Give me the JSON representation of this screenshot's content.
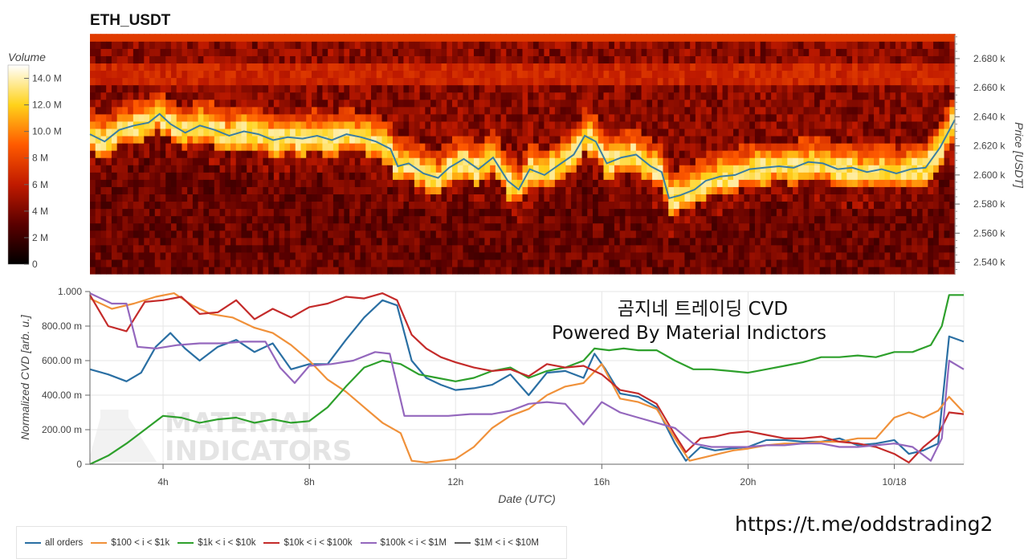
{
  "title": "ETH_USDT",
  "url_text": "https://t.me/oddstrading2",
  "overlay": {
    "line1": "곰지네 트레이딩 CVD",
    "line2": "Powered By Material Indictors"
  },
  "watermark": {
    "line1": "MATERIAL",
    "line2": "INDICATORS"
  },
  "colors": {
    "price_line": "#3b7ea1",
    "heatmap_low": "#000000",
    "heatmap_high": "#ffffff"
  },
  "chart_data": [
    {
      "type": "heatmap",
      "title": "ETH_USDT",
      "colorbar": {
        "label": "Volume",
        "ticks": [
          "0",
          "2 M",
          "4 M",
          "6 M",
          "8 M",
          "10.0 M",
          "12.0 M",
          "14.0 M"
        ],
        "range": [
          0,
          15000000
        ]
      },
      "ylabel": "Price [USDT]",
      "yticks": [
        "2.540 k",
        "2.560 k",
        "2.580 k",
        "2.600 k",
        "2.620 k",
        "2.640 k",
        "2.660 k",
        "2.680 k"
      ],
      "ylim": [
        2532,
        2696
      ],
      "time_range_hours": [
        2.2,
        21.8
      ],
      "price_series": {
        "t": [
          2.2,
          2.6,
          3.0,
          3.4,
          3.8,
          4.1,
          4.4,
          4.8,
          5.2,
          5.6,
          6.0,
          6.4,
          6.8,
          7.2,
          7.6,
          8.0,
          8.4,
          8.8,
          9.2,
          9.6,
          10.0,
          10.4,
          10.6,
          10.9,
          11.3,
          11.7,
          12.0,
          12.4,
          12.8,
          13.2,
          13.6,
          13.9,
          14.2,
          14.6,
          15.0,
          15.4,
          15.7,
          16.0,
          16.3,
          16.7,
          17.1,
          17.5,
          17.8,
          18.0,
          18.3,
          18.7,
          19.0,
          19.4,
          19.8,
          20.2,
          20.6,
          21.0,
          21.4,
          21.8,
          22.2,
          22.6,
          23.0,
          23.4,
          23.8,
          24.2,
          24.6,
          25.0,
          25.4,
          25.8
        ],
        "price": [
          2628,
          2623,
          2631,
          2634,
          2636,
          2642,
          2635,
          2629,
          2634,
          2631,
          2627,
          2630,
          2628,
          2624,
          2626,
          2625,
          2627,
          2624,
          2628,
          2626,
          2623,
          2618,
          2606,
          2608,
          2601,
          2598,
          2605,
          2611,
          2604,
          2612,
          2596,
          2590,
          2604,
          2600,
          2607,
          2614,
          2627,
          2623,
          2608,
          2612,
          2614,
          2606,
          2602,
          2584,
          2586,
          2590,
          2596,
          2599,
          2600,
          2604,
          2605,
          2606,
          2605,
          2609,
          2608,
          2604,
          2605,
          2602,
          2604,
          2601,
          2604,
          2605,
          2619,
          2638
        ]
      },
      "heat_bands": [
        {
          "price": 2600,
          "volume": 14000000,
          "t_start": 10.5,
          "t_end": 21.6
        },
        {
          "price": 2628,
          "volume": 13000000,
          "t_start": 2.2,
          "t_end": 10.6
        },
        {
          "price": 2640,
          "volume": 9000000,
          "t_start": 2.2,
          "t_end": 21.8
        },
        {
          "price": 2670,
          "volume": 8000000,
          "t_start": 2.2,
          "t_end": 21.8
        }
      ]
    },
    {
      "type": "line",
      "xlabel": "Date (UTC)",
      "ylabel": "Normalized CVD [arb. u.]",
      "xticks": [
        "4h",
        "8h",
        "12h",
        "16h",
        "20h",
        "10/18"
      ],
      "xtick_hours": [
        4,
        8,
        12,
        16,
        20,
        24
      ],
      "yticks": [
        "0",
        "200.00 m",
        "400.00 m",
        "600.00 m",
        "800.00 m",
        "1.000"
      ],
      "ylim": [
        0,
        1
      ],
      "xlim_hours": [
        2.0,
        25.9
      ],
      "series": [
        {
          "name": "all orders",
          "color": "#2a6fa3",
          "x": [
            2.0,
            2.5,
            3.0,
            3.4,
            3.8,
            4.2,
            4.6,
            5.0,
            5.5,
            6.0,
            6.5,
            7.0,
            7.5,
            8.0,
            8.5,
            9.0,
            9.5,
            10.0,
            10.4,
            10.8,
            11.2,
            11.6,
            12.0,
            12.5,
            13.0,
            13.5,
            14.0,
            14.5,
            15.0,
            15.5,
            15.8,
            16.1,
            16.5,
            17.0,
            17.5,
            18.0,
            18.3,
            18.7,
            19.1,
            19.5,
            20.0,
            20.5,
            21.0,
            21.5,
            22.0,
            22.5,
            23.0,
            23.5,
            24.0,
            24.4,
            24.8,
            25.2,
            25.5,
            25.9
          ],
          "y": [
            0.55,
            0.52,
            0.48,
            0.53,
            0.68,
            0.76,
            0.67,
            0.6,
            0.68,
            0.72,
            0.65,
            0.7,
            0.55,
            0.58,
            0.58,
            0.72,
            0.85,
            0.95,
            0.92,
            0.6,
            0.5,
            0.46,
            0.43,
            0.44,
            0.46,
            0.52,
            0.4,
            0.53,
            0.54,
            0.5,
            0.64,
            0.55,
            0.41,
            0.39,
            0.33,
            0.12,
            0.02,
            0.1,
            0.08,
            0.09,
            0.1,
            0.14,
            0.14,
            0.13,
            0.13,
            0.15,
            0.11,
            0.12,
            0.14,
            0.06,
            0.08,
            0.12,
            0.74,
            0.71
          ]
        },
        {
          "name": "$100 < i < $1k",
          "color": "#f0913a",
          "x": [
            2.0,
            2.6,
            3.2,
            3.8,
            4.3,
            4.8,
            5.3,
            5.9,
            6.5,
            7.0,
            7.5,
            8.0,
            8.5,
            9.0,
            9.5,
            10.0,
            10.5,
            10.8,
            11.2,
            11.6,
            12.0,
            12.5,
            13.0,
            13.5,
            14.0,
            14.5,
            15.0,
            15.5,
            16.0,
            16.5,
            17.0,
            17.5,
            18.0,
            18.4,
            18.8,
            19.2,
            19.6,
            20.0,
            20.5,
            21.0,
            21.5,
            22.0,
            22.5,
            23.0,
            23.5,
            24.0,
            24.4,
            24.8,
            25.2,
            25.5,
            25.9
          ],
          "y": [
            0.96,
            0.9,
            0.93,
            0.97,
            0.99,
            0.92,
            0.87,
            0.85,
            0.79,
            0.76,
            0.69,
            0.6,
            0.49,
            0.42,
            0.33,
            0.24,
            0.18,
            0.02,
            0.01,
            0.02,
            0.03,
            0.1,
            0.21,
            0.28,
            0.32,
            0.4,
            0.45,
            0.47,
            0.58,
            0.38,
            0.36,
            0.32,
            0.15,
            0.02,
            0.04,
            0.06,
            0.08,
            0.09,
            0.11,
            0.12,
            0.12,
            0.13,
            0.13,
            0.15,
            0.15,
            0.27,
            0.3,
            0.27,
            0.31,
            0.39,
            0.3
          ]
        },
        {
          "name": "$1k < i < $10k",
          "color": "#2ea02c",
          "x": [
            2.0,
            2.5,
            3.0,
            3.5,
            4.0,
            4.5,
            5.0,
            5.5,
            6.0,
            6.5,
            7.0,
            7.5,
            8.0,
            8.5,
            9.0,
            9.5,
            10.0,
            10.5,
            11.0,
            11.5,
            12.0,
            12.5,
            13.0,
            13.5,
            14.0,
            14.5,
            15.0,
            15.5,
            15.8,
            16.2,
            16.6,
            17.0,
            17.5,
            18.0,
            18.5,
            19.0,
            19.5,
            20.0,
            20.5,
            21.0,
            21.5,
            22.0,
            22.5,
            23.0,
            23.5,
            24.0,
            24.5,
            25.0,
            25.3,
            25.5,
            25.9
          ],
          "y": [
            0.0,
            0.05,
            0.12,
            0.2,
            0.28,
            0.27,
            0.24,
            0.26,
            0.27,
            0.24,
            0.26,
            0.24,
            0.25,
            0.33,
            0.45,
            0.56,
            0.6,
            0.58,
            0.52,
            0.5,
            0.48,
            0.5,
            0.54,
            0.56,
            0.5,
            0.54,
            0.56,
            0.6,
            0.67,
            0.66,
            0.67,
            0.66,
            0.66,
            0.6,
            0.55,
            0.55,
            0.54,
            0.53,
            0.55,
            0.57,
            0.59,
            0.62,
            0.62,
            0.63,
            0.62,
            0.65,
            0.65,
            0.69,
            0.8,
            0.98,
            0.98
          ]
        },
        {
          "name": "$10k < i < $100k",
          "color": "#c42b2a",
          "x": [
            2.0,
            2.5,
            3.0,
            3.5,
            4.0,
            4.5,
            5.0,
            5.5,
            6.0,
            6.5,
            7.0,
            7.5,
            8.0,
            8.5,
            9.0,
            9.5,
            10.0,
            10.4,
            10.8,
            11.2,
            11.6,
            12.0,
            12.5,
            13.0,
            13.5,
            14.0,
            14.5,
            15.0,
            15.5,
            16.0,
            16.5,
            17.0,
            17.5,
            18.0,
            18.3,
            18.7,
            19.1,
            19.5,
            20.0,
            20.5,
            21.0,
            21.5,
            22.0,
            22.5,
            23.0,
            23.5,
            24.0,
            24.4,
            24.8,
            25.2,
            25.5,
            25.9
          ],
          "y": [
            0.98,
            0.8,
            0.77,
            0.94,
            0.95,
            0.97,
            0.87,
            0.88,
            0.95,
            0.84,
            0.9,
            0.85,
            0.91,
            0.93,
            0.97,
            0.96,
            0.99,
            0.95,
            0.75,
            0.67,
            0.62,
            0.59,
            0.56,
            0.54,
            0.55,
            0.51,
            0.58,
            0.56,
            0.57,
            0.52,
            0.43,
            0.41,
            0.35,
            0.17,
            0.07,
            0.15,
            0.16,
            0.18,
            0.19,
            0.17,
            0.15,
            0.15,
            0.16,
            0.13,
            0.12,
            0.1,
            0.06,
            0.01,
            0.1,
            0.17,
            0.3,
            0.29
          ]
        },
        {
          "name": "$100k < i < $1M",
          "color": "#9467bd",
          "x": [
            2.0,
            2.6,
            3.0,
            3.3,
            3.8,
            4.4,
            5.0,
            5.6,
            6.2,
            6.8,
            7.2,
            7.6,
            8.0,
            8.6,
            9.2,
            9.8,
            10.2,
            10.6,
            11.2,
            11.8,
            12.4,
            13.0,
            13.5,
            14.0,
            14.5,
            15.0,
            15.5,
            16.0,
            16.5,
            17.0,
            17.5,
            18.0,
            18.5,
            19.0,
            19.5,
            20.0,
            20.5,
            21.0,
            21.5,
            22.0,
            22.5,
            23.0,
            23.5,
            24.0,
            24.5,
            25.0,
            25.3,
            25.5,
            25.9
          ],
          "y": [
            0.99,
            0.93,
            0.93,
            0.68,
            0.67,
            0.69,
            0.7,
            0.7,
            0.71,
            0.71,
            0.56,
            0.47,
            0.57,
            0.58,
            0.6,
            0.65,
            0.64,
            0.28,
            0.28,
            0.28,
            0.29,
            0.29,
            0.31,
            0.35,
            0.36,
            0.35,
            0.23,
            0.36,
            0.3,
            0.27,
            0.24,
            0.21,
            0.12,
            0.1,
            0.1,
            0.1,
            0.11,
            0.11,
            0.12,
            0.12,
            0.1,
            0.1,
            0.11,
            0.12,
            0.1,
            0.02,
            0.15,
            0.6,
            0.55
          ]
        },
        {
          "name": "$1M < i < $10M",
          "color": "#5b5b5b",
          "x": [],
          "y": []
        }
      ],
      "legend_position": "bottom"
    }
  ]
}
